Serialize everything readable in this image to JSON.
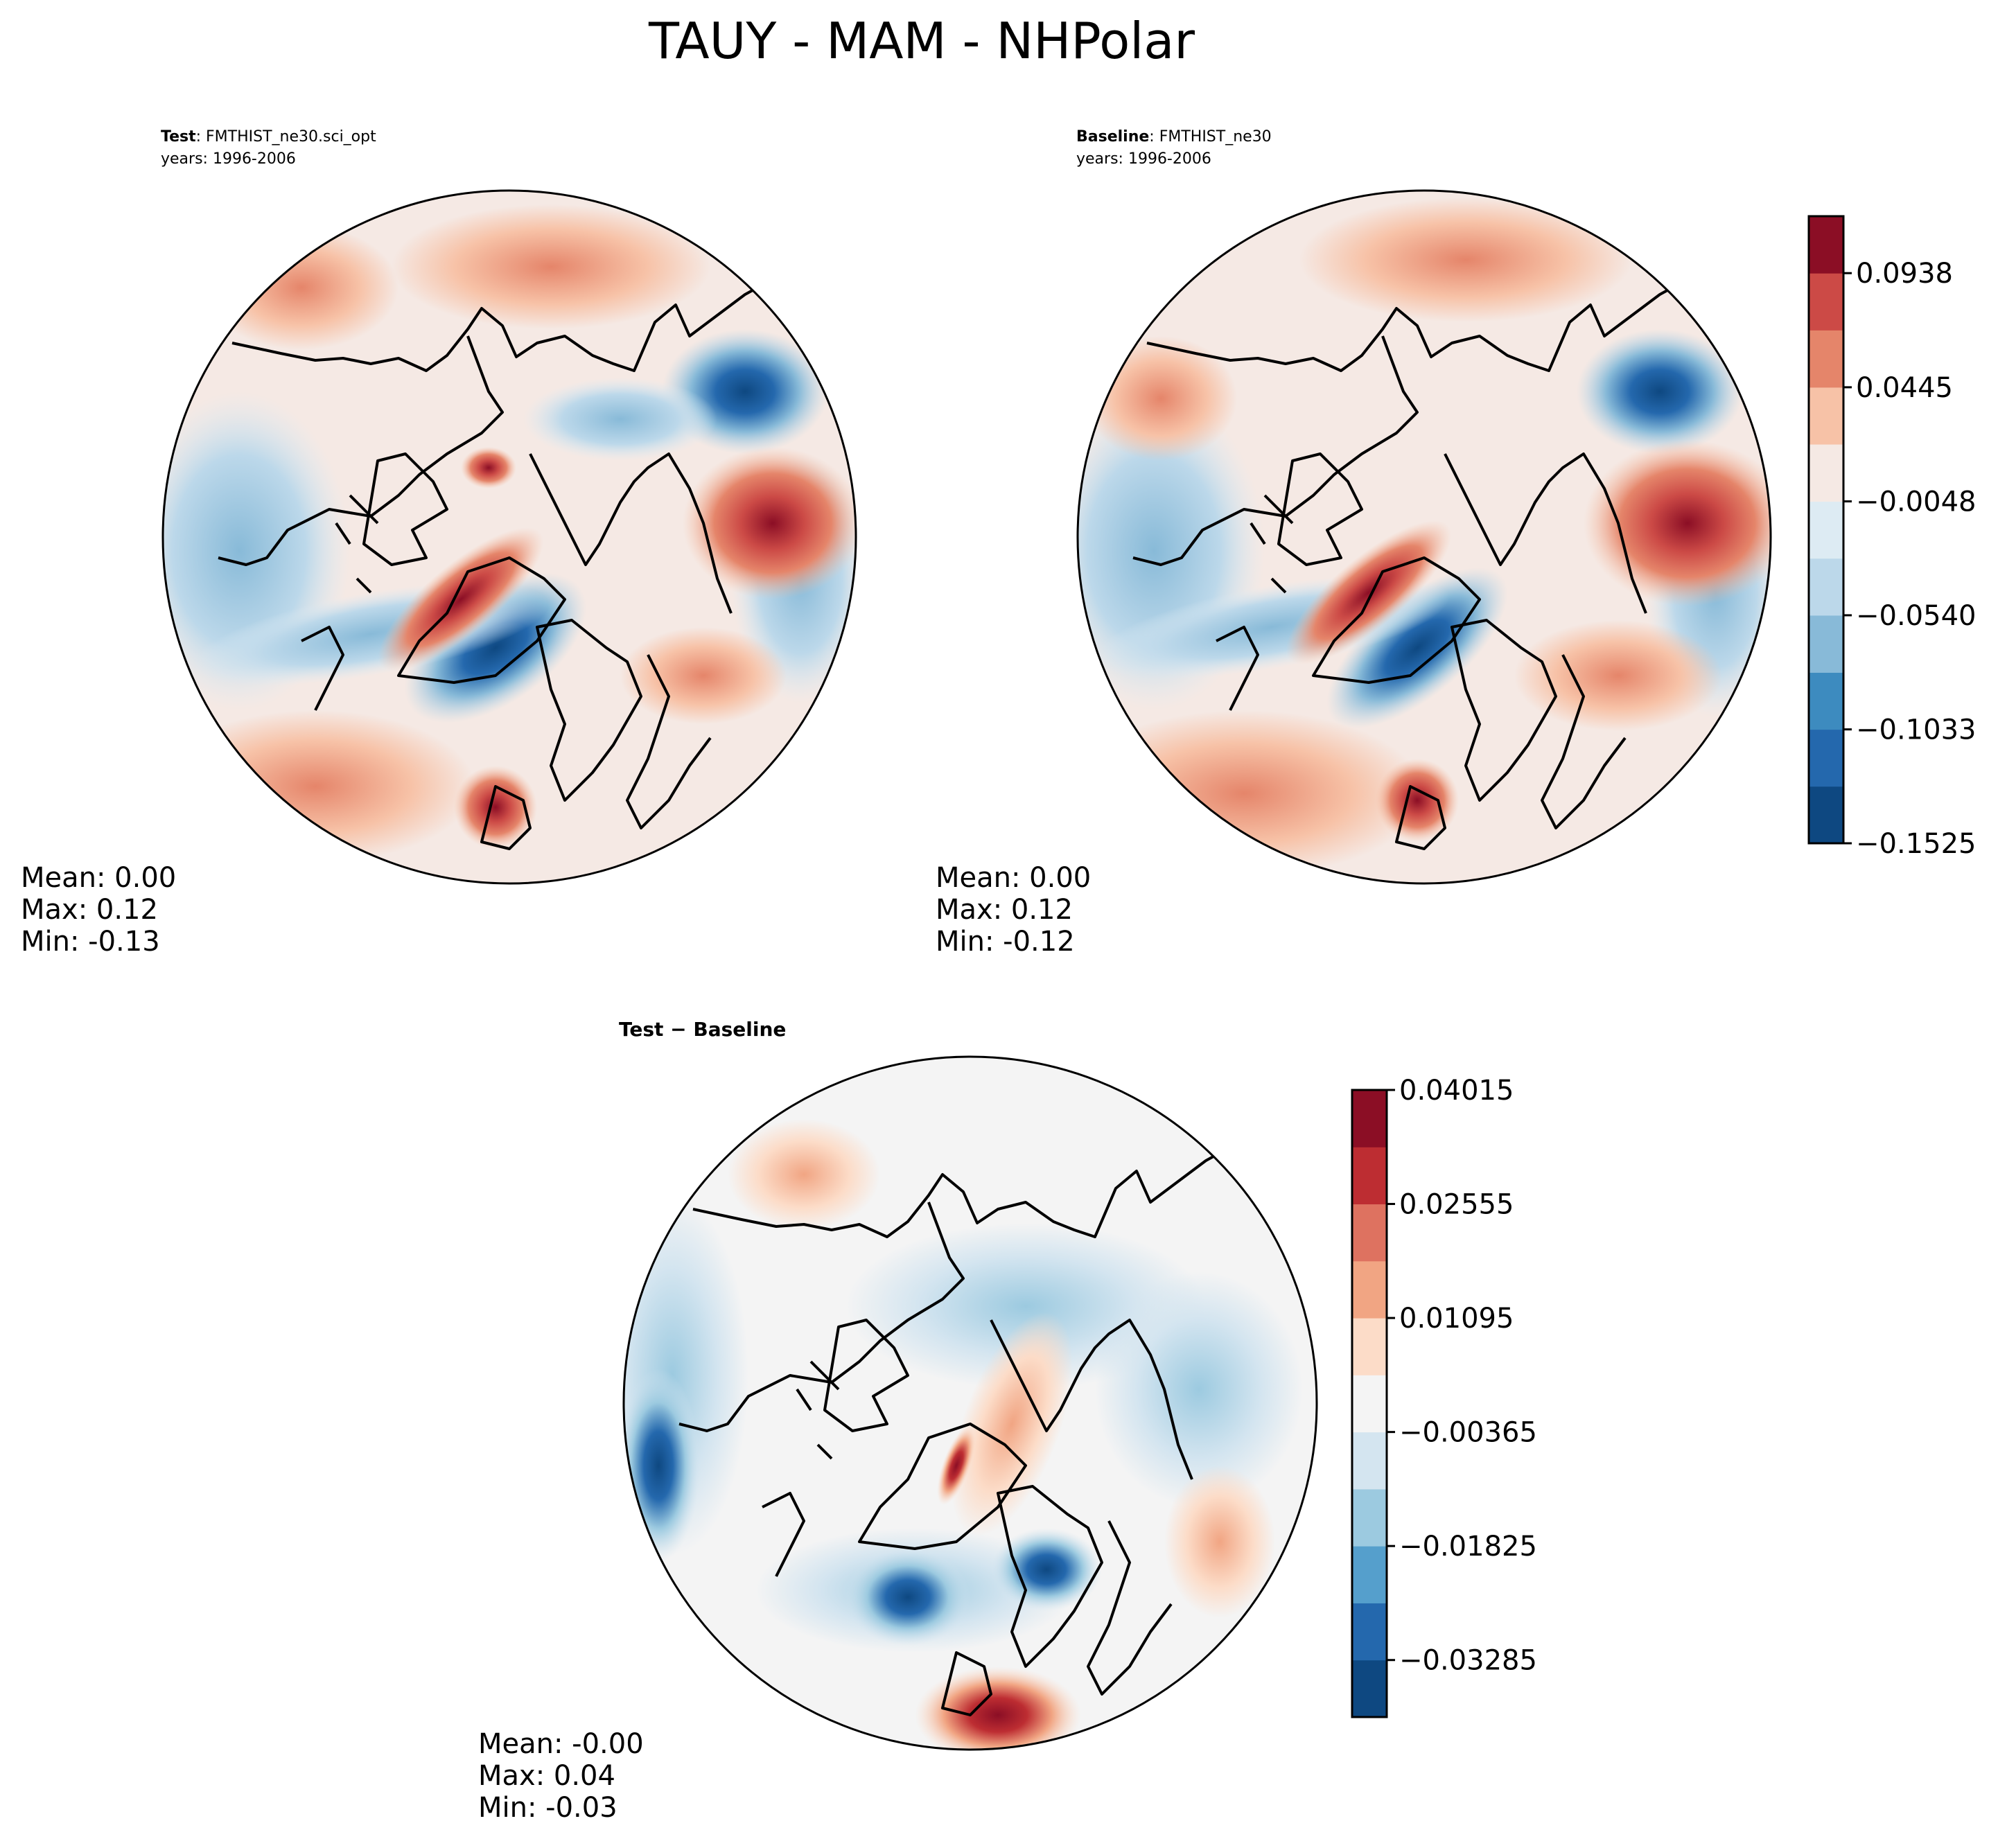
{
  "figure_title": "TAUY - MAM - NHPolar",
  "panels": {
    "test": {
      "label": "Test",
      "case": ": FMTHIST_ne30.sci_opt",
      "years": "years: 1996-2006",
      "stats": {
        "mean": "Mean:  0.00",
        "max": "Max:  0.12",
        "min": "Min: -0.13"
      }
    },
    "baseline": {
      "label": "Baseline",
      "case": ": FMTHIST_ne30",
      "years": "years: 1996-2006",
      "stats": {
        "mean": "Mean:  0.00",
        "max": "Max:  0.12",
        "min": "Min: -0.12"
      }
    },
    "diff": {
      "title": "Test − Baseline",
      "stats": {
        "mean": "Mean: -0.00",
        "max": "Max:  0.04",
        "min": "Min: -0.03"
      }
    }
  },
  "chart_data": [
    {
      "type": "heatmap",
      "name": "Test",
      "projection": "north-polar-stereographic",
      "stats": {
        "mean": 0.0,
        "max": 0.12,
        "min": -0.13
      },
      "levels": [
        -0.1525,
        -0.1279,
        -0.1033,
        -0.0787,
        -0.054,
        -0.0294,
        -0.0048,
        0.0199,
        0.0445,
        0.0692,
        0.0938,
        0.1184
      ],
      "colorbar_ticks": [
        "0.0938",
        "0.0445",
        "−0.0048",
        "−0.0540",
        "−0.1033",
        "−0.1525"
      ]
    },
    {
      "type": "heatmap",
      "name": "Baseline",
      "projection": "north-polar-stereographic",
      "stats": {
        "mean": 0.0,
        "max": 0.12,
        "min": -0.12
      },
      "levels": [
        -0.1525,
        -0.1279,
        -0.1033,
        -0.0787,
        -0.054,
        -0.0294,
        -0.0048,
        0.0199,
        0.0445,
        0.0692,
        0.0938,
        0.1184
      ],
      "colorbar_ticks": [
        "0.0938",
        "0.0445",
        "−0.0048",
        "−0.0540",
        "−0.1033",
        "−0.1525"
      ]
    },
    {
      "type": "heatmap",
      "name": "Test − Baseline",
      "projection": "north-polar-stereographic",
      "stats": {
        "mean": -0.0,
        "max": 0.04,
        "min": -0.03
      },
      "levels": [
        -0.04015,
        -0.03285,
        -0.02555,
        -0.01825,
        -0.01095,
        -0.00365,
        0.00365,
        0.01095,
        0.01825,
        0.02555,
        0.03285,
        0.04015
      ],
      "colorbar_ticks": [
        "0.04015",
        "0.02555",
        "0.01095",
        "−0.00365",
        "−0.01825",
        "−0.03285"
      ]
    }
  ],
  "colors": {
    "rdbu_main": [
      "#0e4881",
      "#2468ad",
      "#3d8bbf",
      "#88bad8",
      "#bcd8ea",
      "#ddebf3",
      "#f5e9e4",
      "#f7c2a7",
      "#e5856a",
      "#cc4a46",
      "#8b0e25"
    ],
    "rdbu_diff": [
      "#0e4881",
      "#2468ad",
      "#559fcc",
      "#9ccae0",
      "#d4e5f0",
      "#f4f4f4",
      "#fcdcc8",
      "#f1a583",
      "#de7260",
      "#bd2d32",
      "#8b0e25"
    ]
  }
}
